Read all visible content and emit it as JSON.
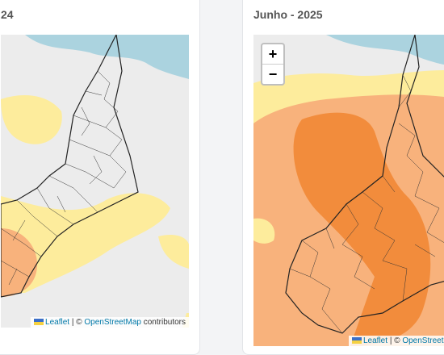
{
  "cards": [
    {
      "title": "24",
      "attribution": {
        "leaflet": "Leaflet",
        "separator": "| ©",
        "osm": "OpenStreetMap",
        "suffix": "contributors"
      }
    },
    {
      "title": "Junho - 2025",
      "zoom_in": "+",
      "zoom_out": "−",
      "attribution": {
        "leaflet": "Leaflet",
        "separator": "| ©",
        "osm": "OpenStreetMap"
      }
    }
  ]
}
